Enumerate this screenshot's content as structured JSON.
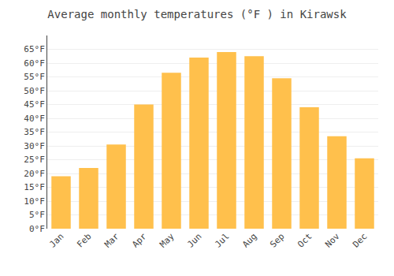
{
  "chart_data": {
    "type": "bar",
    "title": "Average monthly temperatures (°F ) in Kirawsk",
    "categories": [
      "Jan",
      "Feb",
      "Mar",
      "Apr",
      "May",
      "Jun",
      "Jul",
      "Aug",
      "Sep",
      "Oct",
      "Nov",
      "Dec"
    ],
    "values": [
      19,
      22,
      30.5,
      45,
      56.5,
      62,
      64,
      62.5,
      54.5,
      44,
      33.5,
      25.5
    ],
    "color": "#FFC04C",
    "ylim": [
      0,
      70
    ],
    "yticks": [
      {
        "value": 0,
        "label": "0°F"
      },
      {
        "value": 5,
        "label": "5°F"
      },
      {
        "value": 10,
        "label": "10°F"
      },
      {
        "value": 15,
        "label": "15°F"
      },
      {
        "value": 20,
        "label": "20°F"
      },
      {
        "value": 25,
        "label": "25°F"
      },
      {
        "value": 30,
        "label": "30°F"
      },
      {
        "value": 35,
        "label": "35°F"
      },
      {
        "value": 40,
        "label": "40°F"
      },
      {
        "value": 45,
        "label": "45°F"
      },
      {
        "value": 50,
        "label": "50°F"
      },
      {
        "value": 55,
        "label": "55°F"
      },
      {
        "value": 60,
        "label": "60°F"
      },
      {
        "value": 65,
        "label": "65°F"
      }
    ],
    "grid": true
  }
}
